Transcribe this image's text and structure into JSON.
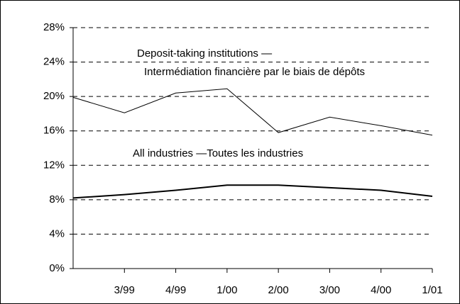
{
  "chart_data": {
    "type": "line",
    "categories": [
      null,
      "3/99",
      "4/99",
      "1/00",
      "2/00",
      "3/00",
      "4/00",
      "1/01"
    ],
    "series": [
      {
        "color": "#000000",
        "values": [
          19.9,
          18.1,
          20.4,
          20.9,
          15.8,
          17.6,
          16.6,
          15.5
        ]
      },
      {
        "color": "#000000",
        "values": [
          8.2,
          8.6,
          9.1,
          9.7,
          9.7,
          9.4,
          9.1,
          8.4
        ]
      }
    ],
    "annotations": [
      {
        "lines": [
          "Deposit-taking institutions —",
          "Intermédiation financière par le biais de dépôts"
        ]
      },
      {
        "lines": [
          "All industries —Toutes les industries"
        ]
      }
    ],
    "ylim": [
      0,
      28
    ],
    "yticks": [
      {
        "value": 0,
        "label": "0%"
      },
      {
        "value": 4,
        "label": "4%"
      },
      {
        "value": 8,
        "label": "8%"
      },
      {
        "value": 12,
        "label": "12%"
      },
      {
        "value": 16,
        "label": "16%"
      },
      {
        "value": 20,
        "label": "20%"
      },
      {
        "value": 24,
        "label": "24%"
      },
      {
        "value": 28,
        "label": "28%"
      }
    ],
    "grid": true
  }
}
